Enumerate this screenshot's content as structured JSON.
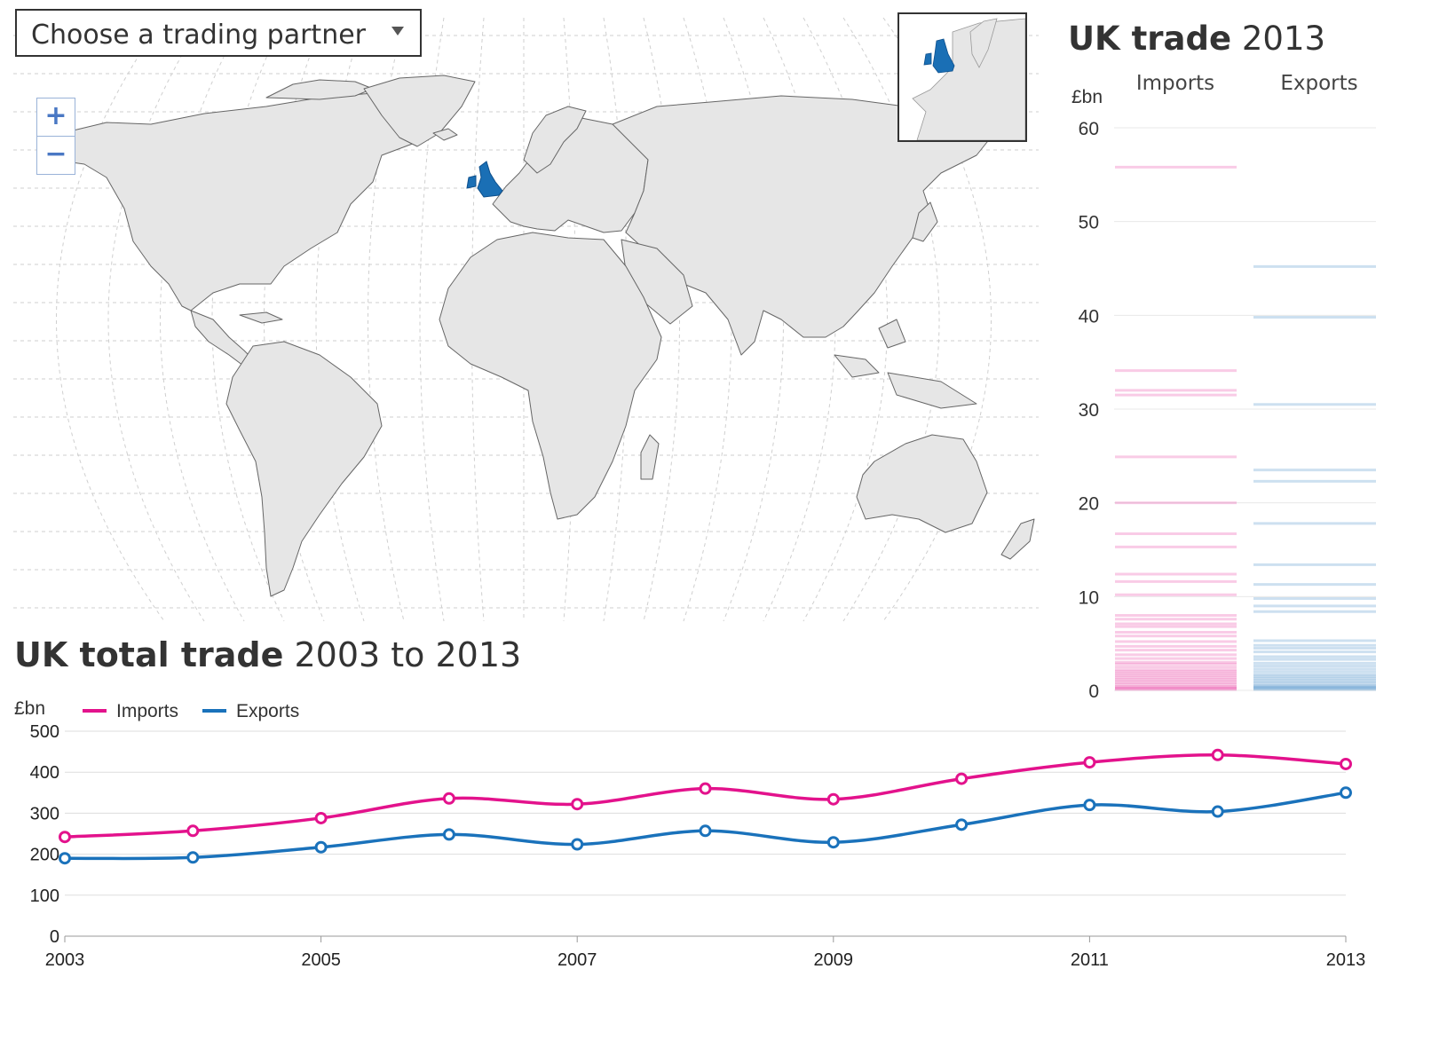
{
  "selector": {
    "label": "Choose a trading partner"
  },
  "zoom": {
    "in_label": "+",
    "out_label": "−"
  },
  "colors": {
    "imports": "#e3128c",
    "exports": "#1a72bb",
    "highlight_country": "#1a6fb5",
    "land": "#e6e6e6"
  },
  "strip": {
    "title_bold": "UK trade",
    "title_light": "2013",
    "unit": "£bn",
    "col_imports": "Imports",
    "col_exports": "Exports"
  },
  "total": {
    "title_bold": "UK total trade",
    "title_light": "2003 to 2013",
    "unit": "£bn",
    "legend_imports": "Imports",
    "legend_exports": "Exports"
  },
  "chart_data": [
    {
      "type": "strip",
      "title": "UK trade 2013",
      "ylabel": "£bn",
      "ylim": [
        0,
        60
      ],
      "yticks": [
        0,
        10,
        20,
        30,
        40,
        50,
        60
      ],
      "series": [
        {
          "name": "Imports",
          "values": [
            55.8,
            34.1,
            32.0,
            31.5,
            24.9,
            20.0,
            16.7,
            15.3,
            12.4,
            11.6,
            10.2,
            8.0,
            7.6,
            7.1,
            6.8,
            6.2,
            5.8,
            5.2,
            4.7,
            4.3,
            3.8,
            3.4,
            3.0,
            2.8,
            2.5,
            2.2,
            2.0,
            1.8,
            1.6,
            1.4,
            1.2,
            1.0,
            0.8,
            0.6,
            0.4,
            0.3,
            0.2,
            0.1
          ]
        },
        {
          "name": "Exports",
          "values": [
            45.2,
            39.8,
            30.5,
            23.5,
            22.3,
            17.8,
            13.4,
            11.3,
            9.8,
            9.0,
            8.4,
            5.3,
            4.8,
            4.5,
            4.1,
            3.6,
            3.3,
            2.9,
            2.6,
            2.3,
            2.0,
            1.7,
            1.5,
            1.3,
            1.1,
            0.9,
            0.7,
            0.5,
            0.4,
            0.3,
            0.2,
            0.1
          ]
        }
      ]
    },
    {
      "type": "line",
      "title": "UK total trade 2003 to 2013",
      "ylabel": "£bn",
      "ylim": [
        0,
        500
      ],
      "yticks": [
        0,
        100,
        200,
        300,
        400,
        500
      ],
      "xticks": [
        2003,
        2005,
        2007,
        2009,
        2011,
        2013
      ],
      "x": [
        2003,
        2004,
        2005,
        2006,
        2007,
        2008,
        2009,
        2010,
        2011,
        2012,
        2013
      ],
      "series": [
        {
          "name": "Imports",
          "values": [
            242,
            257,
            288,
            336,
            322,
            360,
            334,
            384,
            424,
            442,
            420
          ]
        },
        {
          "name": "Exports",
          "values": [
            190,
            192,
            217,
            248,
            224,
            257,
            229,
            272,
            320,
            304,
            350
          ]
        }
      ],
      "grid": true,
      "legend": "top-left"
    }
  ]
}
